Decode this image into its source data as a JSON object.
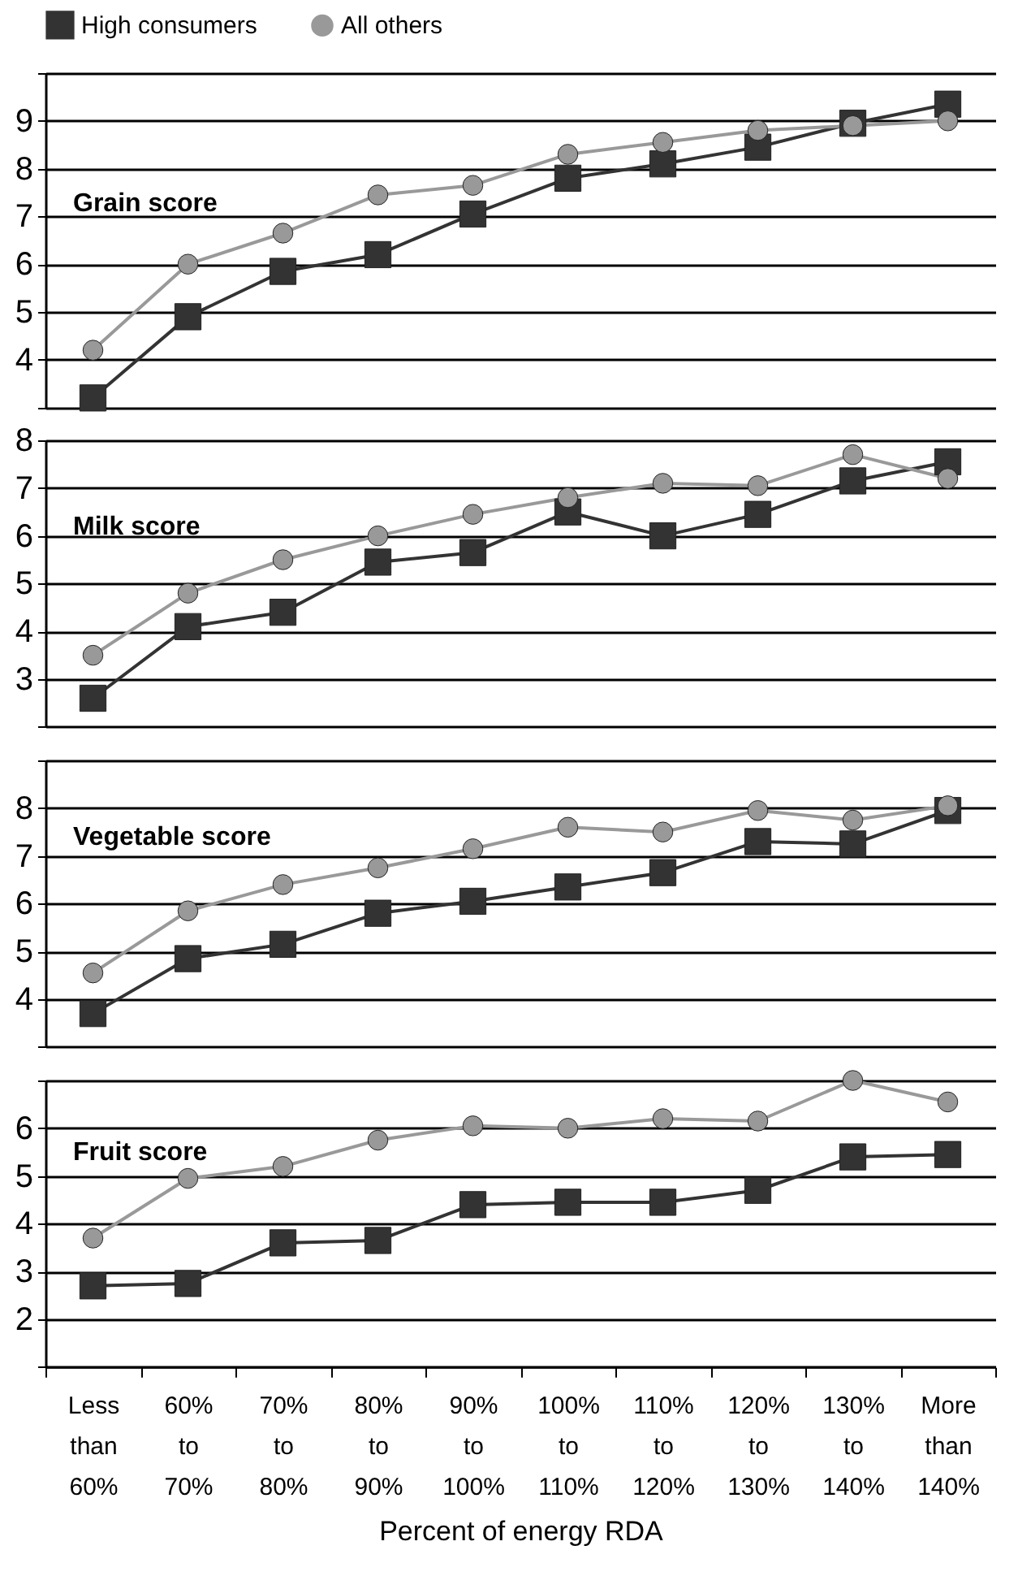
{
  "chart_data": [
    {
      "type": "line",
      "title": "Grain score",
      "legend": "top",
      "tick_labels": "y",
      "grid": "y",
      "categories": [
        "Less than 60%",
        "60% to 70%",
        "70% to 80%",
        "80% to 90%",
        "90% to 100%",
        "100% to 110%",
        "110% to 120%",
        "120% to 130%",
        "130% to 140%",
        "More than 140%"
      ],
      "ylim": [
        3,
        10
      ],
      "yticks": [
        {
          "value": 3,
          "label": null
        },
        4,
        5,
        6,
        7,
        8,
        9,
        {
          "value": 10,
          "label": null
        }
      ],
      "series": [
        {
          "name": "High consumers",
          "color": "#333333",
          "marker": "square",
          "values": [
            3.2,
            4.9,
            5.85,
            6.2,
            7.05,
            7.8,
            8.1,
            8.45,
            8.95,
            9.35
          ]
        },
        {
          "name": "All others",
          "color": "#999999",
          "marker": "circle",
          "values": [
            4.2,
            6.0,
            6.65,
            7.45,
            7.65,
            8.3,
            8.55,
            8.8,
            8.9,
            9.0
          ]
        }
      ]
    },
    {
      "type": "line",
      "title": "Milk score",
      "tick_labels": "y",
      "grid": "y",
      "categories": [
        "Less than 60%",
        "60% to 70%",
        "70% to 80%",
        "80% to 90%",
        "90% to 100%",
        "100% to 110%",
        "110% to 120%",
        "120% to 130%",
        "130% to 140%",
        "More than 140%"
      ],
      "ylim": [
        2,
        8
      ],
      "yticks": [
        {
          "value": 2,
          "label": null
        },
        3,
        4,
        5,
        6,
        7,
        8
      ],
      "series": [
        {
          "name": "High consumers",
          "color": "#333333",
          "marker": "square",
          "values": [
            2.6,
            4.1,
            4.4,
            5.45,
            5.65,
            6.5,
            6.0,
            6.45,
            7.15,
            7.55
          ]
        },
        {
          "name": "All others",
          "color": "#999999",
          "marker": "circle",
          "values": [
            3.5,
            4.8,
            5.5,
            6.0,
            6.45,
            6.8,
            7.1,
            7.05,
            7.7,
            7.2
          ]
        }
      ]
    },
    {
      "type": "line",
      "title": "Vegetable score",
      "tick_labels": "y",
      "grid": "y",
      "categories": [
        "Less than 60%",
        "60% to 70%",
        "70% to 80%",
        "80% to 90%",
        "90% to 100%",
        "100% to 110%",
        "110% to 120%",
        "120% to 130%",
        "130% to 140%",
        "More than 140%"
      ],
      "ylim": [
        3,
        9
      ],
      "yticks": [
        {
          "value": 3,
          "label": null
        },
        4,
        5,
        6,
        7,
        8,
        {
          "value": 9,
          "label": null
        }
      ],
      "series": [
        {
          "name": "High consumers",
          "color": "#333333",
          "marker": "square",
          "values": [
            3.7,
            4.85,
            5.15,
            5.8,
            6.05,
            6.35,
            6.65,
            7.3,
            7.25,
            7.95
          ]
        },
        {
          "name": "All others",
          "color": "#999999",
          "marker": "circle",
          "values": [
            4.55,
            5.85,
            6.4,
            6.75,
            7.15,
            7.6,
            7.5,
            7.95,
            7.75,
            8.05
          ]
        }
      ]
    },
    {
      "type": "line",
      "title": "Fruit score",
      "xlabel": "Percent of energy RDA",
      "grid": "y",
      "categories": [
        "Less than 60%",
        "60% to 70%",
        "70% to 80%",
        "80% to 90%",
        "90% to 100%",
        "100% to 110%",
        "110% to 120%",
        "120% to 130%",
        "130% to 140%",
        "More than 140%"
      ],
      "ylim": [
        1,
        7
      ],
      "yticks": [
        {
          "value": 1,
          "label": null
        },
        2,
        3,
        4,
        5,
        6,
        {
          "value": 7,
          "label": null
        }
      ],
      "series": [
        {
          "name": "High consumers",
          "color": "#333333",
          "marker": "square",
          "values": [
            2.7,
            2.75,
            3.6,
            3.65,
            4.4,
            4.45,
            4.45,
            4.7,
            5.4,
            5.45
          ]
        },
        {
          "name": "All others",
          "color": "#999999",
          "marker": "circle",
          "values": [
            3.7,
            4.95,
            5.2,
            5.75,
            6.05,
            6.0,
            6.2,
            6.15,
            7.0,
            6.55
          ]
        }
      ]
    }
  ]
}
